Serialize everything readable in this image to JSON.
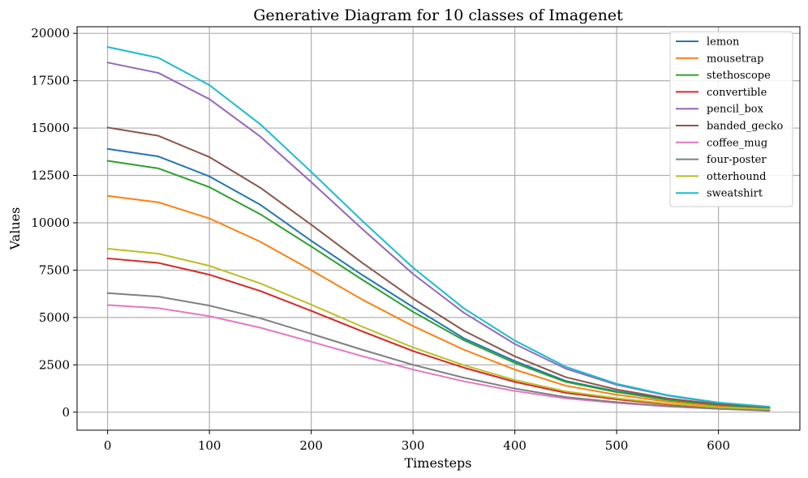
{
  "chart_data": {
    "type": "line",
    "title": "Generative Diagram for 10 classes of Imagenet",
    "xlabel": "Timesteps",
    "ylabel": "Values",
    "xlim": [
      -30,
      680
    ],
    "ylim": [
      -950,
      20350
    ],
    "x_ticks": [
      0,
      100,
      200,
      300,
      400,
      500,
      600
    ],
    "y_ticks": [
      0,
      2500,
      5000,
      7500,
      10000,
      12500,
      15000,
      17500,
      20000
    ],
    "grid": true,
    "legend_position": "top-right",
    "x": [
      0,
      50,
      100,
      150,
      200,
      250,
      300,
      350,
      400,
      450,
      500,
      550,
      600,
      650
    ],
    "series": [
      {
        "name": "lemon",
        "color": "#1f77b4",
        "values": [
          13900,
          13500,
          12450,
          10950,
          9050,
          7250,
          5550,
          3900,
          2700,
          1650,
          1100,
          680,
          400,
          250
        ]
      },
      {
        "name": "mousetrap",
        "color": "#ff7f0e",
        "values": [
          11420,
          11080,
          10230,
          9000,
          7500,
          5950,
          4550,
          3300,
          2250,
          1400,
          920,
          560,
          330,
          200
        ]
      },
      {
        "name": "stethoscope",
        "color": "#2ca02c",
        "values": [
          13270,
          12870,
          11880,
          10450,
          8750,
          7000,
          5300,
          3800,
          2600,
          1600,
          1060,
          650,
          380,
          240
        ]
      },
      {
        "name": "convertible",
        "color": "#d62728",
        "values": [
          8120,
          7880,
          7260,
          6400,
          5350,
          4270,
          3230,
          2350,
          1600,
          1020,
          680,
          410,
          240,
          150
        ]
      },
      {
        "name": "pencil_box",
        "color": "#9467bd",
        "values": [
          18460,
          17910,
          16530,
          14550,
          12150,
          9680,
          7300,
          5250,
          3600,
          2300,
          1450,
          880,
          480,
          270
        ]
      },
      {
        "name": "banded_gecko",
        "color": "#8c564b",
        "values": [
          15030,
          14590,
          13470,
          11850,
          9900,
          7890,
          6000,
          4300,
          2950,
          1850,
          1200,
          730,
          420,
          260
        ]
      },
      {
        "name": "coffee_mug",
        "color": "#e377c2",
        "values": [
          5660,
          5490,
          5070,
          4460,
          3720,
          2960,
          2250,
          1630,
          1120,
          730,
          490,
          300,
          180,
          110
        ]
      },
      {
        "name": "four-poster",
        "color": "#7f7f7f",
        "values": [
          6290,
          6100,
          5630,
          4960,
          4140,
          3300,
          2500,
          1820,
          1250,
          800,
          530,
          320,
          180,
          70
        ]
      },
      {
        "name": "otterhound",
        "color": "#bcbd22",
        "values": [
          8630,
          8370,
          7730,
          6800,
          5680,
          4520,
          3420,
          2480,
          1700,
          1100,
          740,
          450,
          260,
          160
        ]
      },
      {
        "name": "sweatshirt",
        "color": "#17becf",
        "values": [
          19280,
          18710,
          17270,
          15200,
          12690,
          10110,
          7630,
          5480,
          3780,
          2400,
          1500,
          900,
          510,
          290
        ]
      }
    ]
  }
}
